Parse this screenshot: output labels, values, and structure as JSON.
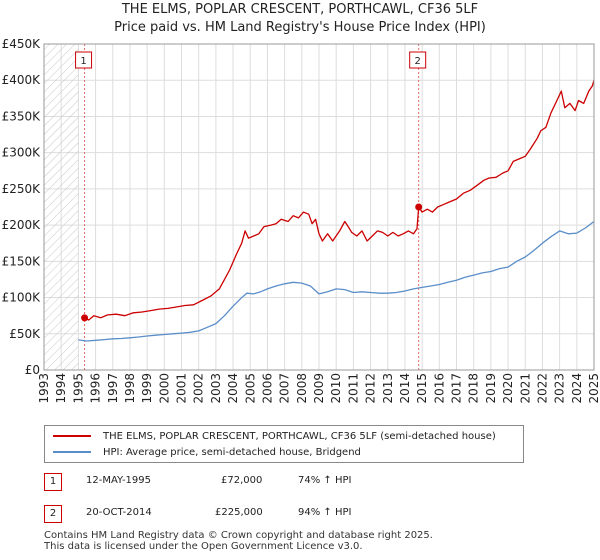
{
  "title_line1": "THE ELMS, POPLAR CRESCENT, PORTHCAWL, CF36 5LF",
  "title_line2": "Price paid vs. HM Land Registry's House Price Index (HPI)",
  "chart_data": {
    "type": "line",
    "xlim": [
      1993.0,
      2025.0
    ],
    "ylim": [
      0,
      450000
    ],
    "x_ticks": [
      1993,
      1994,
      1995,
      1996,
      1997,
      1998,
      1999,
      2000,
      2001,
      2002,
      2003,
      2004,
      2005,
      2006,
      2007,
      2008,
      2009,
      2010,
      2011,
      2012,
      2013,
      2014,
      2015,
      2016,
      2017,
      2018,
      2019,
      2020,
      2021,
      2022,
      2023,
      2024,
      2025
    ],
    "y_ticks": [
      {
        "value": 0,
        "label": "£0"
      },
      {
        "value": 50000,
        "label": "£50K"
      },
      {
        "value": 100000,
        "label": "£100K"
      },
      {
        "value": 150000,
        "label": "£150K"
      },
      {
        "value": 200000,
        "label": "£200K"
      },
      {
        "value": 250000,
        "label": "£250K"
      },
      {
        "value": 300000,
        "label": "£300K"
      },
      {
        "value": 350000,
        "label": "£350K"
      },
      {
        "value": 400000,
        "label": "£400K"
      },
      {
        "value": 450000,
        "label": "£450K"
      }
    ],
    "hatched_before": 1995.0,
    "series": [
      {
        "name": "THE ELMS, POPLAR CRESCENT, PORTHCAWL, CF36 5LF (semi-detached house)",
        "color": "#cc0000",
        "points": [
          [
            1995.36,
            72000
          ],
          [
            1995.6,
            69000
          ],
          [
            1995.9,
            75000
          ],
          [
            1996.3,
            72000
          ],
          [
            1996.7,
            76000
          ],
          [
            1997.2,
            77000
          ],
          [
            1997.7,
            75000
          ],
          [
            1998.2,
            79000
          ],
          [
            1998.7,
            80000
          ],
          [
            1999.2,
            82000
          ],
          [
            1999.7,
            84000
          ],
          [
            2000.2,
            85000
          ],
          [
            2000.7,
            87000
          ],
          [
            2001.2,
            89000
          ],
          [
            2001.7,
            90000
          ],
          [
            2002.2,
            96000
          ],
          [
            2002.7,
            102000
          ],
          [
            2003.2,
            112000
          ],
          [
            2003.5,
            125000
          ],
          [
            2003.8,
            138000
          ],
          [
            2004.2,
            160000
          ],
          [
            2004.5,
            175000
          ],
          [
            2004.7,
            192000
          ],
          [
            2004.9,
            182000
          ],
          [
            2005.2,
            185000
          ],
          [
            2005.5,
            188000
          ],
          [
            2005.8,
            198000
          ],
          [
            2006.2,
            200000
          ],
          [
            2006.5,
            202000
          ],
          [
            2006.8,
            208000
          ],
          [
            2007.2,
            205000
          ],
          [
            2007.5,
            213000
          ],
          [
            2007.8,
            210000
          ],
          [
            2008.1,
            218000
          ],
          [
            2008.4,
            215000
          ],
          [
            2008.6,
            202000
          ],
          [
            2008.8,
            208000
          ],
          [
            2009.0,
            188000
          ],
          [
            2009.2,
            178000
          ],
          [
            2009.5,
            188000
          ],
          [
            2009.8,
            178000
          ],
          [
            2010.2,
            192000
          ],
          [
            2010.5,
            205000
          ],
          [
            2010.7,
            198000
          ],
          [
            2010.9,
            190000
          ],
          [
            2011.2,
            185000
          ],
          [
            2011.5,
            192000
          ],
          [
            2011.8,
            178000
          ],
          [
            2012.1,
            185000
          ],
          [
            2012.4,
            192000
          ],
          [
            2012.7,
            190000
          ],
          [
            2013.0,
            185000
          ],
          [
            2013.3,
            190000
          ],
          [
            2013.6,
            185000
          ],
          [
            2013.9,
            188000
          ],
          [
            2014.2,
            192000
          ],
          [
            2014.5,
            188000
          ],
          [
            2014.7,
            195000
          ],
          [
            2014.8,
            225000
          ],
          [
            2015.0,
            218000
          ],
          [
            2015.3,
            222000
          ],
          [
            2015.6,
            218000
          ],
          [
            2015.9,
            225000
          ],
          [
            2016.2,
            228000
          ],
          [
            2016.6,
            232000
          ],
          [
            2017.0,
            236000
          ],
          [
            2017.4,
            244000
          ],
          [
            2017.8,
            248000
          ],
          [
            2018.2,
            255000
          ],
          [
            2018.6,
            262000
          ],
          [
            2018.9,
            265000
          ],
          [
            2019.3,
            266000
          ],
          [
            2019.7,
            272000
          ],
          [
            2020.0,
            275000
          ],
          [
            2020.3,
            288000
          ],
          [
            2020.7,
            292000
          ],
          [
            2021.0,
            295000
          ],
          [
            2021.3,
            305000
          ],
          [
            2021.7,
            320000
          ],
          [
            2021.9,
            330000
          ],
          [
            2022.2,
            335000
          ],
          [
            2022.5,
            355000
          ],
          [
            2022.8,
            370000
          ],
          [
            2023.1,
            385000
          ],
          [
            2023.3,
            362000
          ],
          [
            2023.6,
            368000
          ],
          [
            2023.9,
            358000
          ],
          [
            2024.1,
            372000
          ],
          [
            2024.4,
            368000
          ],
          [
            2024.7,
            385000
          ],
          [
            2024.9,
            392000
          ],
          [
            2025.0,
            400000
          ]
        ]
      },
      {
        "name": "HPI: Average price, semi-detached house, Bridgend",
        "color": "#5b8ec9",
        "points": [
          [
            1995.0,
            41500
          ],
          [
            1995.5,
            40000
          ],
          [
            1996.0,
            41000
          ],
          [
            1996.5,
            42000
          ],
          [
            1997.0,
            43000
          ],
          [
            1997.5,
            43500
          ],
          [
            1998.0,
            44500
          ],
          [
            1998.5,
            45500
          ],
          [
            1999.0,
            47000
          ],
          [
            1999.5,
            48000
          ],
          [
            2000.0,
            49000
          ],
          [
            2000.5,
            50000
          ],
          [
            2001.0,
            51000
          ],
          [
            2001.5,
            52000
          ],
          [
            2002.0,
            54000
          ],
          [
            2002.5,
            59000
          ],
          [
            2003.0,
            64000
          ],
          [
            2003.5,
            75000
          ],
          [
            2004.0,
            88000
          ],
          [
            2004.5,
            100000
          ],
          [
            2004.8,
            106000
          ],
          [
            2005.2,
            105000
          ],
          [
            2005.6,
            108000
          ],
          [
            2006.0,
            112000
          ],
          [
            2006.5,
            116000
          ],
          [
            2007.0,
            119000
          ],
          [
            2007.5,
            121000
          ],
          [
            2008.0,
            120000
          ],
          [
            2008.5,
            116000
          ],
          [
            2009.0,
            105000
          ],
          [
            2009.5,
            108000
          ],
          [
            2010.0,
            112000
          ],
          [
            2010.5,
            111000
          ],
          [
            2011.0,
            107000
          ],
          [
            2011.5,
            108000
          ],
          [
            2012.0,
            107000
          ],
          [
            2012.5,
            106000
          ],
          [
            2013.0,
            106000
          ],
          [
            2013.5,
            107000
          ],
          [
            2014.0,
            109000
          ],
          [
            2014.5,
            112000
          ],
          [
            2015.0,
            114000
          ],
          [
            2015.5,
            116000
          ],
          [
            2016.0,
            118000
          ],
          [
            2016.5,
            121000
          ],
          [
            2017.0,
            124000
          ],
          [
            2017.5,
            128000
          ],
          [
            2018.0,
            131000
          ],
          [
            2018.5,
            134000
          ],
          [
            2019.0,
            136000
          ],
          [
            2019.5,
            140000
          ],
          [
            2020.0,
            142000
          ],
          [
            2020.5,
            150000
          ],
          [
            2021.0,
            156000
          ],
          [
            2021.5,
            165000
          ],
          [
            2022.0,
            175000
          ],
          [
            2022.5,
            184000
          ],
          [
            2023.0,
            192000
          ],
          [
            2023.5,
            188000
          ],
          [
            2024.0,
            189000
          ],
          [
            2024.5,
            196000
          ],
          [
            2025.0,
            205000
          ]
        ]
      }
    ],
    "sales": [
      {
        "label": "1",
        "x": 1995.36,
        "price": 72000
      },
      {
        "label": "2",
        "x": 2014.8,
        "price": 225000
      }
    ]
  },
  "legend": {
    "entries": [
      {
        "label": "THE ELMS, POPLAR CRESCENT, PORTHCAWL, CF36 5LF (semi-detached house)",
        "color": "#cc0000"
      },
      {
        "label": "HPI: Average price, semi-detached house, Bridgend",
        "color": "#5b8ec9"
      }
    ]
  },
  "table": {
    "rows": [
      {
        "label": "1",
        "date": "12-MAY-1995",
        "price": "£72,000",
        "hpi": "74% ↑ HPI"
      },
      {
        "label": "2",
        "date": "20-OCT-2014",
        "price": "£225,000",
        "hpi": "94% ↑ HPI"
      }
    ]
  },
  "footer": {
    "line1": "Contains HM Land Registry data © Crown copyright and database right 2025.",
    "line2": "This data is licensed under the Open Government Licence v3.0."
  }
}
